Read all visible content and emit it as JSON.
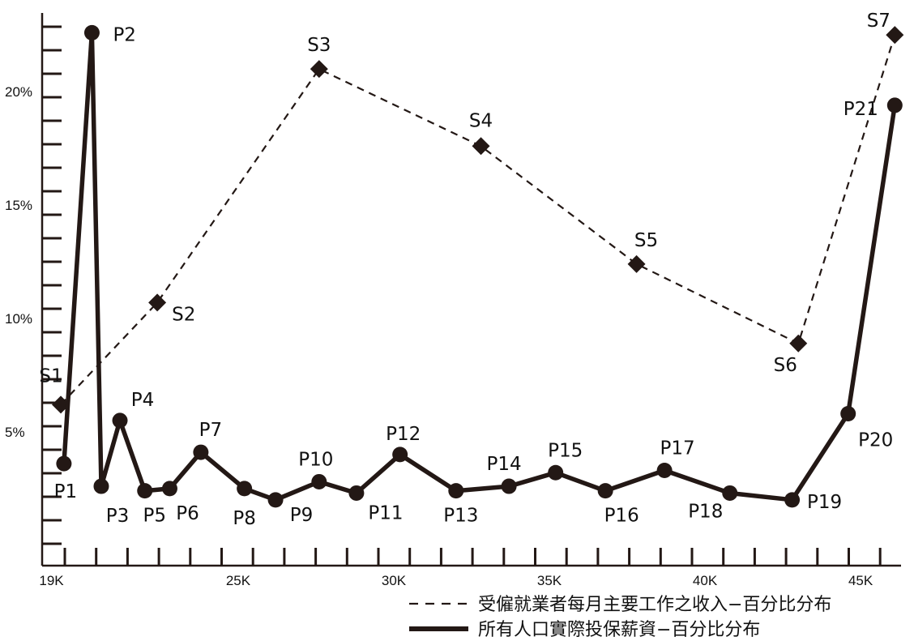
{
  "chart_data": {
    "type": "line",
    "title": "",
    "xlabel": "",
    "ylabel": "",
    "x_tick_labels": [
      "19K",
      "25K",
      "30K",
      "35K",
      "40K",
      "45K"
    ],
    "x_tick_values": [
      19000,
      25000,
      30000,
      35000,
      40000,
      45000
    ],
    "y_tick_labels": [
      "5%",
      "10%",
      "15%",
      "20%"
    ],
    "y_tick_values": [
      5,
      10,
      15,
      20
    ],
    "xlim": [
      18700,
      46300
    ],
    "ylim": [
      -0.9,
      23.4
    ],
    "grid": false,
    "legend_position": "bottom-right",
    "series": [
      {
        "name": "受僱就業者每月主要工作之收入−百分比分布",
        "style": "dashed",
        "marker": "diamond",
        "color": "#231815",
        "points": [
          {
            "label": "S1",
            "x": 19300,
            "y": 6.2
          },
          {
            "label": "S2",
            "x": 22400,
            "y": 10.7
          },
          {
            "label": "S3",
            "x": 27600,
            "y": 21.0
          },
          {
            "label": "S4",
            "x": 32800,
            "y": 17.6
          },
          {
            "label": "S5",
            "x": 37800,
            "y": 12.4
          },
          {
            "label": "S6",
            "x": 43000,
            "y": 8.9
          },
          {
            "label": "S7",
            "x": 46100,
            "y": 22.5
          }
        ]
      },
      {
        "name": "所有人口實際投保薪資−百分比分布",
        "style": "solid",
        "marker": "circle",
        "color": "#231815",
        "points": [
          {
            "label": "P1",
            "x": 19400,
            "y": 3.6
          },
          {
            "label": "P2",
            "x": 20300,
            "y": 22.6
          },
          {
            "label": "P3",
            "x": 20600,
            "y": 2.6
          },
          {
            "label": "P4",
            "x": 21200,
            "y": 5.5
          },
          {
            "label": "P5",
            "x": 22000,
            "y": 2.4
          },
          {
            "label": "P6",
            "x": 22800,
            "y": 2.5
          },
          {
            "label": "P7",
            "x": 23800,
            "y": 4.1
          },
          {
            "label": "P8",
            "x": 25200,
            "y": 2.5
          },
          {
            "label": "P9",
            "x": 26200,
            "y": 2.0
          },
          {
            "label": "P10",
            "x": 27600,
            "y": 2.8
          },
          {
            "label": "P11",
            "x": 28800,
            "y": 2.3
          },
          {
            "label": "P12",
            "x": 30200,
            "y": 4.0
          },
          {
            "label": "P13",
            "x": 32000,
            "y": 2.4
          },
          {
            "label": "P14",
            "x": 33700,
            "y": 2.6
          },
          {
            "label": "P15",
            "x": 35200,
            "y": 3.2
          },
          {
            "label": "P16",
            "x": 36800,
            "y": 2.4
          },
          {
            "label": "P17",
            "x": 38700,
            "y": 3.3
          },
          {
            "label": "P18",
            "x": 40800,
            "y": 2.3
          },
          {
            "label": "P19",
            "x": 42800,
            "y": 2.0
          },
          {
            "label": "P20",
            "x": 44600,
            "y": 5.8
          },
          {
            "label": "P21",
            "x": 46100,
            "y": 19.4
          }
        ]
      }
    ]
  }
}
